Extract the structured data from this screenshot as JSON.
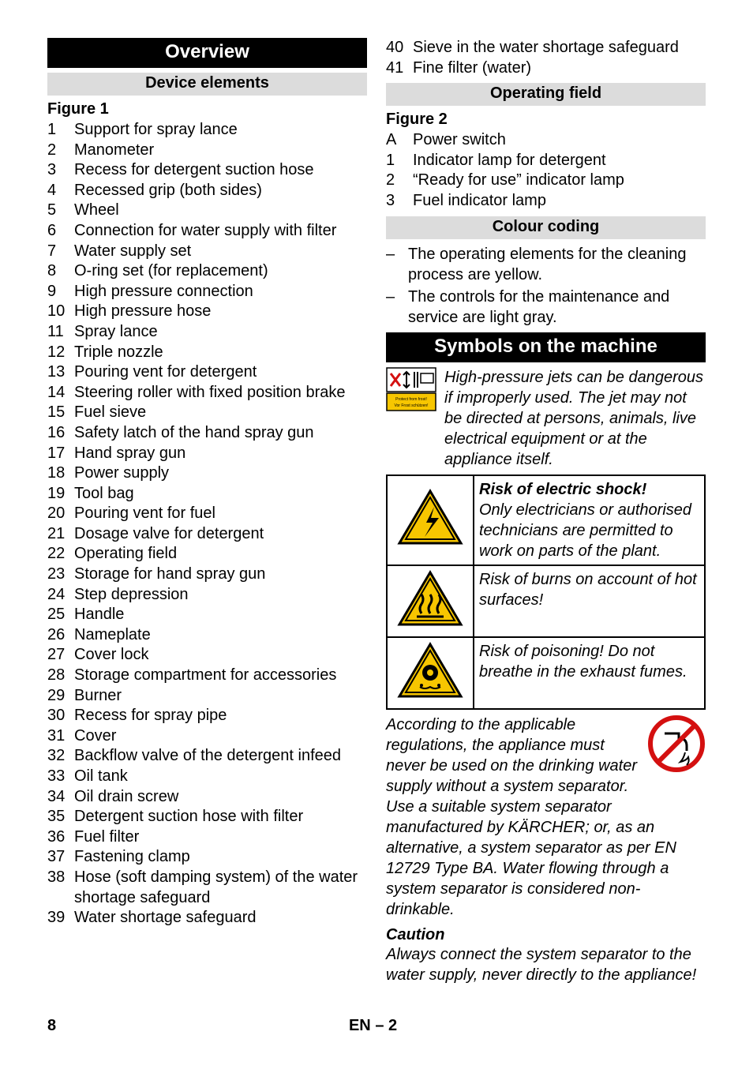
{
  "left": {
    "overview": "Overview",
    "device_elements": "Device elements",
    "figure1": "Figure 1",
    "items": [
      {
        "n": "1",
        "t": "Support for spray lance"
      },
      {
        "n": "2",
        "t": "Manometer"
      },
      {
        "n": "3",
        "t": "Recess for detergent suction hose"
      },
      {
        "n": "4",
        "t": "Recessed grip (both sides)"
      },
      {
        "n": "5",
        "t": "Wheel"
      },
      {
        "n": "6",
        "t": "Connection for water supply with filter"
      },
      {
        "n": "7",
        "t": "Water supply set"
      },
      {
        "n": "8",
        "t": "O-ring set (for replacement)"
      },
      {
        "n": "9",
        "t": "High pressure connection"
      },
      {
        "n": "10",
        "t": "High pressure hose"
      },
      {
        "n": "11",
        "t": "Spray lance"
      },
      {
        "n": "12",
        "t": "Triple nozzle"
      },
      {
        "n": "13",
        "t": "Pouring vent for detergent"
      },
      {
        "n": "14",
        "t": "Steering roller with fixed position brake"
      },
      {
        "n": "15",
        "t": "Fuel sieve"
      },
      {
        "n": "16",
        "t": "Safety latch of the hand spray gun"
      },
      {
        "n": "17",
        "t": "Hand spray gun"
      },
      {
        "n": "18",
        "t": "Power supply"
      },
      {
        "n": "19",
        "t": "Tool bag"
      },
      {
        "n": "20",
        "t": "Pouring vent for fuel"
      },
      {
        "n": "21",
        "t": "Dosage valve for detergent"
      },
      {
        "n": "22",
        "t": "Operating field"
      },
      {
        "n": "23",
        "t": "Storage for hand spray gun"
      },
      {
        "n": "24",
        "t": "Step depression"
      },
      {
        "n": "25",
        "t": "Handle"
      },
      {
        "n": "26",
        "t": "Nameplate"
      },
      {
        "n": "27",
        "t": "Cover lock"
      },
      {
        "n": "28",
        "t": "Storage compartment for accessories"
      },
      {
        "n": "29",
        "t": "Burner"
      },
      {
        "n": "30",
        "t": "Recess for spray pipe"
      },
      {
        "n": "31",
        "t": "Cover"
      },
      {
        "n": "32",
        "t": "Backflow valve of the detergent infeed"
      },
      {
        "n": "33",
        "t": "Oil tank"
      },
      {
        "n": "34",
        "t": "Oil drain screw"
      },
      {
        "n": "35",
        "t": "Detergent suction hose with filter"
      },
      {
        "n": "36",
        "t": "Fuel filter"
      },
      {
        "n": "37",
        "t": "Fastening clamp"
      },
      {
        "n": "38",
        "t": "Hose (soft damping system) of the water shortage safeguard"
      },
      {
        "n": "39",
        "t": "Water shortage safeguard"
      }
    ]
  },
  "right": {
    "items_cont": [
      {
        "n": "40",
        "t": "Sieve in the water shortage safeguard"
      },
      {
        "n": "41",
        "t": "Fine filter (water)"
      }
    ],
    "operating_field": "Operating field",
    "figure2": "Figure 2",
    "fig2_items": [
      {
        "n": "A",
        "t": "Power switch"
      },
      {
        "n": "1",
        "t": "Indicator lamp for detergent"
      },
      {
        "n": "2",
        "t": "“Ready for use” indicator lamp"
      },
      {
        "n": "3",
        "t": "Fuel indicator lamp"
      }
    ],
    "colour_coding": "Colour coding",
    "colour_items": [
      "The operating elements for the cleaning process are yellow.",
      "The controls for the maintenance and service are light gray."
    ],
    "symbols_heading": "Symbols on the machine",
    "jet_text": "High-pressure jets can be dangerous if improperly used. The jet may not be directed at persons, animals, live electrical equipment or at the appliance itself.",
    "shock_title": "Risk of electric shock!",
    "shock_body": "Only electricians or authorised technicians are permitted to work on parts of the plant.",
    "burns": "Risk of burns on account of hot surfaces!",
    "poison": "Risk of poisoning! Do not breathe in the exhaust fumes.",
    "regulation": "According to the applicable regulations, the appliance must never be used on the drinking water supply without a system separator. Use a suitable system separator manufactured by KÄRCHER; or, as an alternative, a system separator as per EN 12729 Type BA. Water flowing through a system separator is considered non-drinkable.",
    "caution": "Caution",
    "caution_body": "Always connect the system separator to the water supply, never directly to the appliance!"
  },
  "footer": {
    "page": "8",
    "lang": "EN",
    "dash": "–",
    "sub": "2"
  },
  "colors": {
    "warn_border": "#000000",
    "warn_fill": "#f7c600",
    "frost_fill": "#f7c600",
    "red": "#d41010"
  }
}
